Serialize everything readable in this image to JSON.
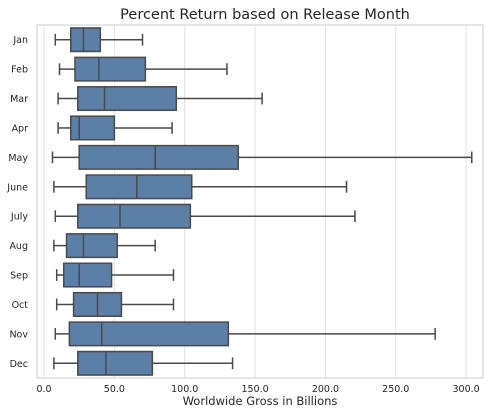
{
  "chart_data": {
    "type": "box",
    "orientation": "horizontal",
    "title": "Percent Return based on Release Month",
    "xlabel": "Worldwide Gross in Billions",
    "ylabel": "",
    "xlim": [
      -5,
      312
    ],
    "xticks": [
      0,
      50,
      100,
      150,
      200,
      250,
      300
    ],
    "xtick_labels": [
      "0.0",
      "50.0",
      "100.0",
      "150.0",
      "200.0",
      "250.0",
      "300.0"
    ],
    "grid": "vertical",
    "box_color": "#5b7fa6",
    "edge_color": "#4a4a4a",
    "categories": [
      "Jan",
      "Feb",
      "Mar",
      "Apr",
      "May",
      "June",
      "July",
      "Aug",
      "Sep",
      "Oct",
      "Nov",
      "Dec"
    ],
    "boxes": [
      {
        "whisker_low": 8,
        "q1": 19,
        "median": 28,
        "q3": 40,
        "whisker_high": 70
      },
      {
        "whisker_low": 11,
        "q1": 22,
        "median": 39,
        "q3": 72,
        "whisker_high": 130
      },
      {
        "whisker_low": 10,
        "q1": 24,
        "median": 43,
        "q3": 94,
        "whisker_high": 155
      },
      {
        "whisker_low": 10,
        "q1": 19,
        "median": 25,
        "q3": 50,
        "whisker_high": 91
      },
      {
        "whisker_low": 6,
        "q1": 25,
        "median": 79,
        "q3": 138,
        "whisker_high": 304
      },
      {
        "whisker_low": 7,
        "q1": 30,
        "median": 66,
        "q3": 105,
        "whisker_high": 215
      },
      {
        "whisker_low": 8,
        "q1": 24,
        "median": 54,
        "q3": 104,
        "whisker_high": 221
      },
      {
        "whisker_low": 7,
        "q1": 16,
        "median": 28,
        "q3": 52,
        "whisker_high": 79
      },
      {
        "whisker_low": 9,
        "q1": 14,
        "median": 25,
        "q3": 48,
        "whisker_high": 92
      },
      {
        "whisker_low": 9,
        "q1": 21,
        "median": 38,
        "q3": 55,
        "whisker_high": 92
      },
      {
        "whisker_low": 8,
        "q1": 18,
        "median": 41,
        "q3": 131,
        "whisker_high": 278
      },
      {
        "whisker_low": 7,
        "q1": 24,
        "median": 44,
        "q3": 77,
        "whisker_high": 134
      }
    ]
  }
}
